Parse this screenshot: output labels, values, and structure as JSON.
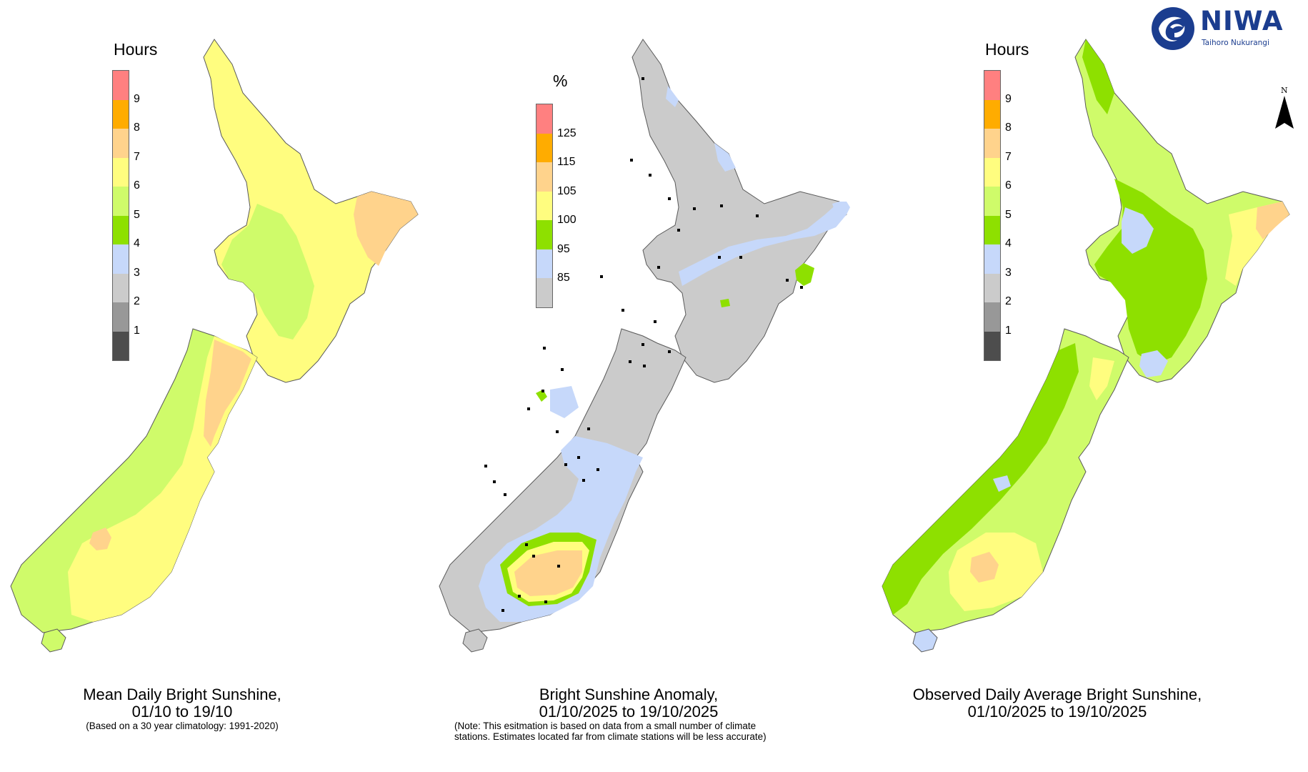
{
  "colors": {
    "c1": "#4d4d4d",
    "c2": "#989898",
    "c3": "#cbcbcb",
    "c4": "#c6d8fa",
    "c5": "#8ee000",
    "c6": "#cffb6a",
    "c7": "#fffd7f",
    "c8": "#ffd38c",
    "c9": "#ffac00",
    "c10": "#ff8080",
    "land_coast": "#5a5a5a"
  },
  "panels": [
    {
      "legend": {
        "title": "Hours",
        "swatches": [
          "#ff8080",
          "#ffac00",
          "#ffd38c",
          "#fffd7f",
          "#cffb6a",
          "#8ee000",
          "#c6d8fa",
          "#cbcbcb",
          "#989898",
          "#4d4d4d"
        ],
        "ticks": [
          "9",
          "8",
          "7",
          "6",
          "5",
          "4",
          "3",
          "2",
          "1"
        ]
      },
      "caption": {
        "title_line1": "Mean Daily Bright Sunshine,",
        "title_line2": "01/10 to 19/10",
        "sub_line1": "(Based on a 30 year climatology: 1991-2020)",
        "sub_line2": ""
      }
    },
    {
      "legend": {
        "title": "%",
        "swatches": [
          "#ff8080",
          "#ffac00",
          "#ffd38c",
          "#fffd7f",
          "#8ee000",
          "#c6d8fa",
          "#cbcbcb"
        ],
        "ticks": [
          "125",
          "115",
          "105",
          "100",
          "95",
          "85"
        ]
      },
      "caption": {
        "title_line1": "Bright Sunshine Anomaly,",
        "title_line2": "01/10/2025 to 19/10/2025",
        "sub_line1": "(Note: This esitmation is based on data from a small number of climate",
        "sub_line2": "stations. Estimates located far from climate stations will be less accurate)"
      }
    },
    {
      "legend": {
        "title": "Hours",
        "swatches": [
          "#ff8080",
          "#ffac00",
          "#ffd38c",
          "#fffd7f",
          "#cffb6a",
          "#8ee000",
          "#c6d8fa",
          "#cbcbcb",
          "#989898",
          "#4d4d4d"
        ],
        "ticks": [
          "9",
          "8",
          "7",
          "6",
          "5",
          "4",
          "3",
          "2",
          "1"
        ]
      },
      "caption": {
        "title_line1": "Observed Daily Average Bright Sunshine,",
        "title_line2": "01/10/2025 to 19/10/2025",
        "sub_line1": "",
        "sub_line2": ""
      }
    }
  ],
  "logo": {
    "name": "NIWA",
    "tagline": "Taihoro Nukurangi"
  },
  "north_arrow": {
    "label": "N"
  }
}
